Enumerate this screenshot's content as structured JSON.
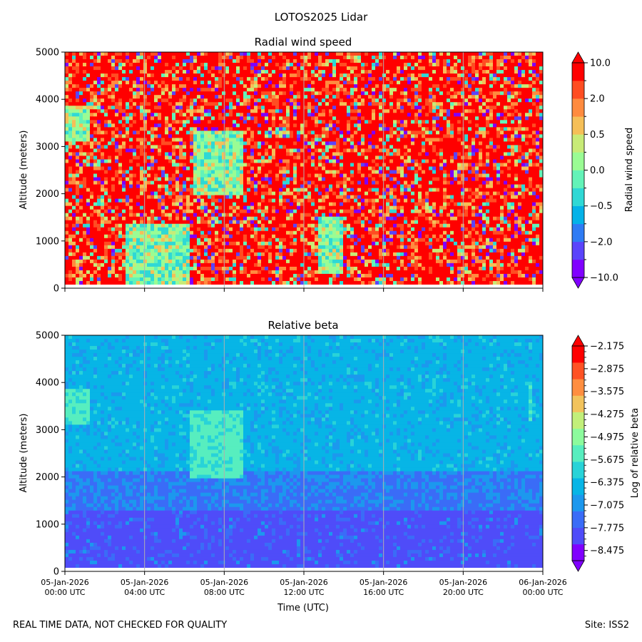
{
  "figure": {
    "suptitle": "LOTOS2025 Lidar",
    "footer_left": "REAL TIME DATA, NOT CHECKED FOR QUALITY",
    "footer_right": "Site: ISS2",
    "shared_xlabel": "Time (UTC)"
  },
  "chart_data": [
    {
      "type": "heatmap",
      "title": "Radial wind speed",
      "ylabel": "Altitude (meters)",
      "xlabel": "Time (UTC)",
      "ylim": [
        0,
        5000
      ],
      "yticks": [
        0,
        1000,
        2000,
        3000,
        4000,
        5000
      ],
      "xlim_hours": [
        0,
        24
      ],
      "xtick_hours": [
        0,
        4,
        8,
        12,
        16,
        20,
        24
      ],
      "xtick_labels": [],
      "colorbar": {
        "label": "Radial wind speed",
        "levels": 13,
        "extend": "both",
        "ticks": [
          "10.0",
          "2.0",
          "0.5",
          "0.0",
          "−0.5",
          "−2.0",
          "−10.0"
        ],
        "colors": [
          "#8000ff",
          "#5a44fb",
          "#2e7bf4",
          "#04b2e8",
          "#2fd8d5",
          "#63f3b8",
          "#9afc94",
          "#c8eb77",
          "#f5bf58",
          "#ff8b3f",
          "#ff4d22",
          "#ff0000"
        ]
      },
      "features": [
        {
          "name": "high-speed background",
          "level": "high",
          "coverage": "most of domain"
        },
        {
          "name": "low-level near-zero feature",
          "hours": [
            3,
            6.2
          ],
          "altitude_m": [
            100,
            1400
          ]
        },
        {
          "name": "early high feature",
          "hours": [
            0,
            1.3
          ],
          "altitude_m": [
            3100,
            3850
          ]
        },
        {
          "name": "mid-day feature",
          "hours": [
            6.5,
            9
          ],
          "altitude_m": [
            2000,
            3300
          ]
        },
        {
          "name": "afternoon low feature",
          "hours": [
            12.7,
            14
          ],
          "altitude_m": [
            300,
            1500
          ]
        }
      ]
    },
    {
      "type": "heatmap",
      "title": "Relative beta",
      "ylabel": "Altitude (meters)",
      "xlabel": "Time (UTC)",
      "ylim": [
        0,
        5000
      ],
      "yticks": [
        0,
        1000,
        2000,
        3000,
        4000,
        5000
      ],
      "xlim_hours": [
        0,
        24
      ],
      "xtick_hours": [
        0,
        4,
        8,
        12,
        16,
        20,
        24
      ],
      "xtick_labels": [
        [
          "05-Jan-2026",
          "00:00 UTC"
        ],
        [
          "05-Jan-2026",
          "04:00 UTC"
        ],
        [
          "05-Jan-2026",
          "08:00 UTC"
        ],
        [
          "05-Jan-2026",
          "12:00 UTC"
        ],
        [
          "05-Jan-2026",
          "16:00 UTC"
        ],
        [
          "05-Jan-2026",
          "20:00 UTC"
        ],
        [
          "06-Jan-2026",
          "00:00 UTC"
        ]
      ],
      "colorbar": {
        "label": "Log of relative beta",
        "extend": "both",
        "ticks": [
          "−2.175",
          "−2.875",
          "−3.575",
          "−4.275",
          "−4.975",
          "−5.675",
          "−6.375",
          "−7.075",
          "−7.775",
          "−8.475"
        ],
        "minor_per_major": 4,
        "colors": [
          "#8000ff",
          "#4f4cf9",
          "#3a6cf7",
          "#1c98ee",
          "#07b5e6",
          "#28d3d8",
          "#57eebf",
          "#8cfb9d",
          "#c2ef7a",
          "#f2c35c",
          "#ff8e40",
          "#ff5224",
          "#ff0000"
        ]
      },
      "features": [
        {
          "name": "near-surface layer",
          "level": "-8.5",
          "altitude_m": [
            0,
            1300
          ]
        },
        {
          "name": "mid layer",
          "level": "-7.8",
          "altitude_m": [
            1300,
            2100
          ]
        },
        {
          "name": "upper background",
          "level": "-7.1",
          "altitude_m": [
            2100,
            5000
          ]
        },
        {
          "name": "early cloud",
          "hours": [
            0,
            1.3
          ],
          "altitude_m": [
            3100,
            3850
          ],
          "level": "-6.4"
        },
        {
          "name": "mid-day cloud",
          "hours": [
            6.3,
            9
          ],
          "altitude_m": [
            2000,
            3400
          ],
          "level": "-6.4"
        },
        {
          "name": "late cloud",
          "hours": [
            23.2,
            23.4
          ],
          "altitude_m": [
            3200,
            4050
          ],
          "level": "-6.4"
        }
      ]
    }
  ]
}
